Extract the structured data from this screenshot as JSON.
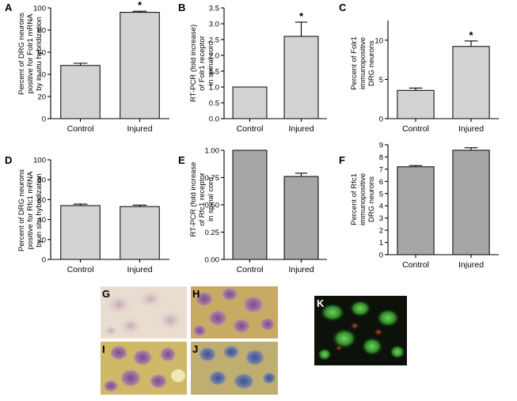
{
  "colors": {
    "bar_light": "#d3d3d3",
    "bar_dark": "#a6a6a6",
    "axis": "#000000"
  },
  "chart_data": [
    {
      "panel": "A",
      "type": "bar",
      "categories": [
        "Control",
        "Injured"
      ],
      "values": [
        48,
        96
      ],
      "errors": [
        2,
        1
      ],
      "significance": [
        "",
        "*"
      ],
      "ylabel": [
        "Percent of DRG neurons",
        "positive for Folr1 mRNA",
        "by in situ hybridization"
      ],
      "ylim": [
        0,
        100
      ],
      "yticks": [
        "0",
        "20",
        "40",
        "60",
        "80",
        "100"
      ],
      "ytick_values": [
        0,
        20,
        40,
        60,
        80,
        100
      ],
      "bar_color": "light"
    },
    {
      "panel": "B",
      "type": "bar",
      "categories": [
        "Control",
        "Injured"
      ],
      "values": [
        1.0,
        2.6
      ],
      "errors": [
        0,
        0.45
      ],
      "significance": [
        "",
        "*"
      ],
      "ylabel": [
        "RT-PCR (fold increase)",
        "of Folr1 receptor",
        "in spinal cord"
      ],
      "ylim": [
        0,
        3.5
      ],
      "yticks": [
        "0.0",
        "0.5",
        "1.0",
        "1.5",
        "2.0",
        "2.5",
        "3.0",
        "3.5"
      ],
      "ytick_values": [
        0,
        0.5,
        1.0,
        1.5,
        2.0,
        2.5,
        3.0,
        3.5
      ],
      "bar_color": "light"
    },
    {
      "panel": "C",
      "type": "bar",
      "categories": [
        "Control",
        "Injured"
      ],
      "values": [
        3.6,
        9.2
      ],
      "errors": [
        0.3,
        0.7
      ],
      "significance": [
        "",
        "*"
      ],
      "ylabel": [
        "Percent of Folr1",
        "immunopositive",
        "DRG neurons"
      ],
      "ylim": [
        0,
        15
      ],
      "yticks": [
        "0",
        "5",
        "10"
      ],
      "ytick_values": [
        0,
        5,
        10
      ],
      "bar_color": "light"
    },
    {
      "panel": "D",
      "type": "bar",
      "categories": [
        "Control",
        "Injured"
      ],
      "values": [
        54,
        53
      ],
      "errors": [
        1.5,
        1.5
      ],
      "significance": [
        "",
        ""
      ],
      "ylabel": [
        "Percent of DRG neurons",
        "positive for Rfc1 mRNA",
        "by in situ hybridization"
      ],
      "ylim": [
        0,
        100
      ],
      "yticks": [
        "0",
        "20",
        "40",
        "60",
        "80",
        "100"
      ],
      "ytick_values": [
        0,
        20,
        40,
        60,
        80,
        100
      ],
      "bar_color": "light"
    },
    {
      "panel": "E",
      "type": "bar",
      "categories": [
        "Control",
        "Injured"
      ],
      "values": [
        1.0,
        0.76
      ],
      "errors": [
        0,
        0.03
      ],
      "significance": [
        "",
        ""
      ],
      "ylabel": [
        "RT-PCR (fold increase",
        "of Rfc1 receptor",
        "in spinal cord"
      ],
      "ylim": [
        0,
        1.0
      ],
      "yticks": [
        "0.00",
        "0.25",
        "0.50",
        "0.75",
        "1.00"
      ],
      "ytick_values": [
        0,
        0.25,
        0.5,
        0.75,
        1.0
      ],
      "bar_color": "dark"
    },
    {
      "panel": "F",
      "type": "bar",
      "categories": [
        "Control",
        "Injured"
      ],
      "values": [
        7.2,
        8.55
      ],
      "errors": [
        0.1,
        0.2
      ],
      "significance": [
        "",
        ""
      ],
      "ylabel": [
        "Percent of Rfc1",
        "immunopositive",
        "DRG neurons"
      ],
      "ylim": [
        0,
        9
      ],
      "yticks": [
        "0",
        "1",
        "2",
        "3",
        "4",
        "5",
        "6",
        "7",
        "8",
        "9"
      ],
      "ytick_values": [
        0,
        1,
        2,
        3,
        4,
        5,
        6,
        7,
        8,
        9
      ],
      "bar_color": "dark"
    }
  ],
  "micrographs": {
    "letters": [
      "G",
      "H",
      "I",
      "J",
      "K"
    ]
  }
}
